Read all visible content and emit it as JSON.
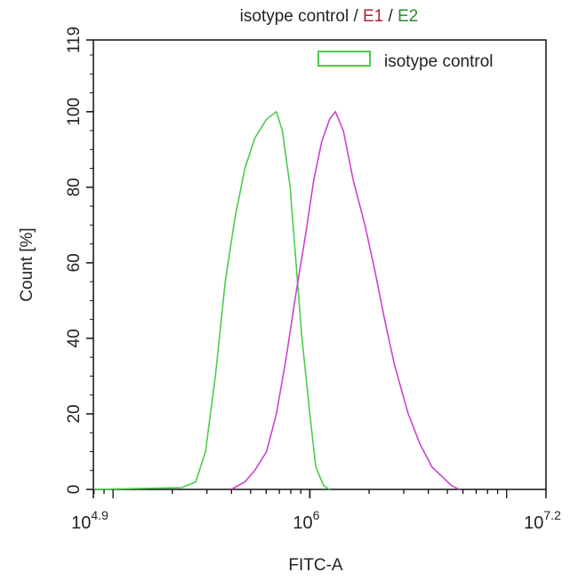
{
  "chart_data": {
    "type": "line",
    "title_parts": [
      {
        "text": "isotype control / ",
        "color": "#222222"
      },
      {
        "text": "E1",
        "color": "#b0203a"
      },
      {
        "text": " / ",
        "color": "#222222"
      },
      {
        "text": "E2",
        "color": "#2e8b2e"
      }
    ],
    "xlabel": "FITC-A",
    "ylabel": "Count  [%]",
    "xscale": "log10",
    "xlim": [
      4.9,
      7.2
    ],
    "ylim": [
      0,
      119
    ],
    "x_ticks": [
      {
        "base": "10",
        "exp": "4.9",
        "v": 4.9
      },
      {
        "base": "10",
        "exp": "6",
        "v": 6
      },
      {
        "base": "10",
        "exp": "7.2",
        "v": 7.2
      }
    ],
    "y_ticks": [
      "0",
      "20",
      "40",
      "60",
      "80",
      "100",
      "119"
    ],
    "legend": {
      "position": "top-right",
      "entries": [
        {
          "label": "isotype control",
          "color": "#4ccc4c"
        }
      ]
    },
    "series": [
      {
        "name": "isotype control",
        "color": "#4ccc4c",
        "x": [
          4.9,
          5.2,
          5.35,
          5.42,
          5.47,
          5.52,
          5.57,
          5.62,
          5.67,
          5.72,
          5.78,
          5.83,
          5.86,
          5.9,
          5.93,
          5.96,
          6.0,
          6.03,
          6.07,
          6.1
        ],
        "y": [
          0,
          0.3,
          0.5,
          2,
          10,
          30,
          55,
          72,
          85,
          93,
          98,
          100,
          95,
          80,
          60,
          40,
          20,
          6,
          1,
          0
        ]
      },
      {
        "name": "E1",
        "color": "#cc44cc",
        "x": [
          5.6,
          5.67,
          5.72,
          5.78,
          5.83,
          5.88,
          5.93,
          5.98,
          6.02,
          6.06,
          6.1,
          6.13,
          6.17,
          6.22,
          6.28,
          6.33,
          6.38,
          6.43,
          6.5,
          6.56,
          6.62,
          6.68,
          6.72,
          6.76
        ],
        "y": [
          0,
          2,
          5,
          10,
          20,
          35,
          52,
          68,
          82,
          92,
          98,
          100,
          95,
          82,
          70,
          58,
          45,
          33,
          20,
          12,
          6,
          3,
          1,
          0
        ]
      }
    ]
  }
}
